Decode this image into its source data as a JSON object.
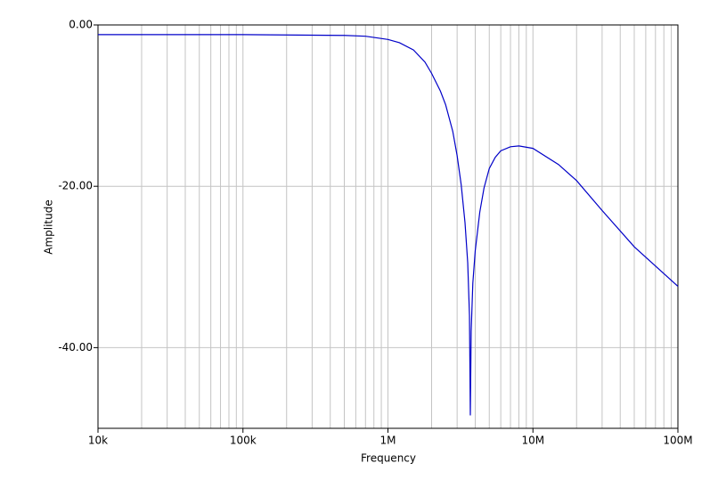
{
  "chart_data": {
    "type": "line",
    "xlabel": "Frequency",
    "ylabel": "Amplitude",
    "xscale": "log",
    "grid": true,
    "xlim": [
      10000,
      100000000
    ],
    "ylim": [
      -50,
      0
    ],
    "xticks": [
      {
        "value": 10000,
        "label": "10k"
      },
      {
        "value": 100000,
        "label": "100k"
      },
      {
        "value": 1000000,
        "label": "1M"
      },
      {
        "value": 10000000,
        "label": "10M"
      },
      {
        "value": 100000000,
        "label": "100M"
      }
    ],
    "xminorticks": [
      20000,
      30000,
      40000,
      50000,
      60000,
      70000,
      80000,
      90000,
      200000,
      300000,
      400000,
      500000,
      600000,
      700000,
      800000,
      900000,
      2000000,
      3000000,
      4000000,
      5000000,
      6000000,
      7000000,
      8000000,
      9000000,
      20000000,
      30000000,
      40000000,
      50000000,
      60000000,
      70000000,
      80000000,
      90000000
    ],
    "yticks": [
      {
        "value": 0,
        "label": "0.00"
      },
      {
        "value": -20,
        "label": "-20.00"
      },
      {
        "value": -40,
        "label": "-40.00"
      }
    ],
    "x": [
      10000,
      100000,
      500000,
      700000,
      1000000,
      1200000,
      1500000,
      1800000,
      2000000,
      2300000,
      2500000,
      2800000,
      3000000,
      3200000,
      3400000,
      3550000,
      3650000,
      3700000,
      3750000,
      3850000,
      4000000,
      4300000,
      4600000,
      5000000,
      5500000,
      6000000,
      7000000,
      8000000,
      10000000,
      15000000,
      20000000,
      30000000,
      50000000,
      100000000
    ],
    "series": [
      {
        "name": "Amplitude",
        "color": "#0000c8",
        "values": [
          -1.2,
          -1.2,
          -1.3,
          -1.4,
          -1.8,
          -2.2,
          -3.1,
          -4.6,
          -6.0,
          -8.2,
          -9.9,
          -13.2,
          -16.2,
          -19.8,
          -24.5,
          -29.5,
          -36.0,
          -48.4,
          -38.0,
          -32.0,
          -28.0,
          -23.2,
          -20.2,
          -17.8,
          -16.4,
          -15.6,
          -15.1,
          -15.0,
          -15.3,
          -17.3,
          -19.3,
          -23.0,
          -27.5,
          -32.4
        ]
      }
    ]
  }
}
